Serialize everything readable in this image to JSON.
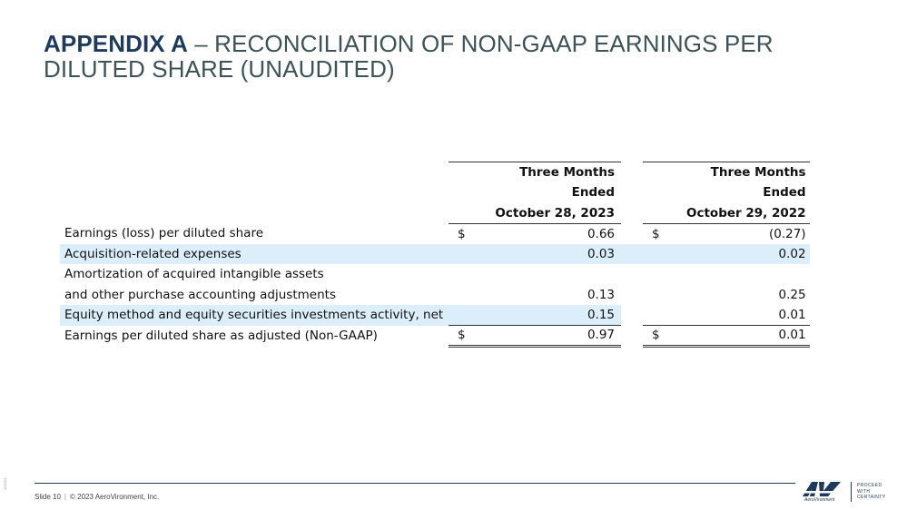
{
  "slide": {
    "title_bold": "APPENDIX A",
    "title_rest": " – RECONCILIATION OF NON-GAAP EARNINGS PER DILUTED SHARE (UNAUDITED)"
  },
  "table": {
    "col1_header": [
      "Three Months",
      "Ended",
      "October 28, 2023"
    ],
    "col2_header": [
      "Three Months",
      "Ended",
      "October 29, 2022"
    ],
    "rows": [
      {
        "label": "Earnings (loss) per diluted share",
        "v1": "0.66",
        "v2": "(0.27)",
        "cur1": "$",
        "cur2": "$"
      },
      {
        "label": "Acquisition-related expenses",
        "v1": "0.03",
        "v2": "0.02"
      },
      {
        "label": "Amortization  of acquired intangible assets"
      },
      {
        "label": "and other purchase accounting adjustments",
        "v1": "0.13",
        "v2": "0.25"
      },
      {
        "label": "Equity method and equity securities investments activity, net",
        "v1": "0.15",
        "v2": "0.01"
      },
      {
        "label": "Earnings per diluted share as adjusted (Non-GAAP)",
        "v1": "0.97",
        "v2": "0.01",
        "cur1": "$",
        "cur2": "$"
      }
    ]
  },
  "footer": {
    "slide_label": "Slide 10",
    "separator": "|",
    "copyright": "© 2023 AeroVironment, Inc.",
    "side_code": "102023",
    "logo_name": "AeroVironment",
    "tagline": [
      "PROCEED",
      "WITH",
      "CERTAINTY"
    ]
  },
  "colors": {
    "title_bold": "#1f3a5c",
    "title_text": "#3d5357",
    "row_shade": "#dceefa",
    "brand": "#1f3a5c"
  }
}
